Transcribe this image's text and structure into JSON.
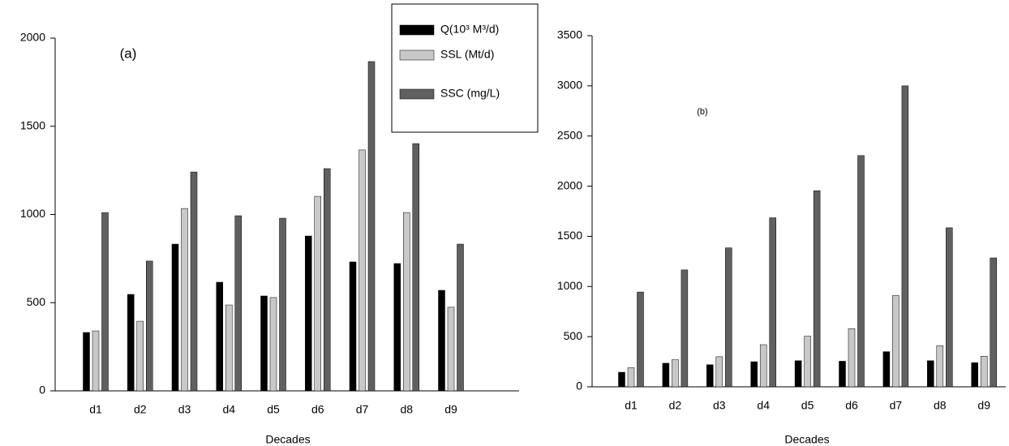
{
  "chart_data": [
    {
      "type": "bar",
      "title": "(a)",
      "x_label": "Decades",
      "categories": [
        "d1",
        "d2",
        "d3",
        "d4",
        "d5",
        "d6",
        "d7",
        "d8",
        "d9"
      ],
      "series": [
        {
          "name": "Q(10³ M³/d)",
          "color": "#000000",
          "values": [
            331,
            547,
            832,
            616,
            538,
            878,
            731,
            722,
            570
          ]
        },
        {
          "name": "SSL (Mt/d)",
          "color": "#c8c8c8",
          "values": [
            340,
            395,
            1034,
            487,
            529,
            1103,
            1366,
            1011,
            474
          ]
        },
        {
          "name": "SSC (mg/L)",
          "color": "#606060",
          "values": [
            1011,
            736,
            1241,
            993,
            979,
            1260,
            1867,
            1402,
            832
          ]
        }
      ],
      "ylim": [
        0,
        2000
      ],
      "yticks": [
        0,
        500,
        1000,
        1500,
        2000
      ],
      "legend": true
    },
    {
      "type": "bar",
      "title": "(b)",
      "x_label": "Decades",
      "categories": [
        "d1",
        "d2",
        "d3",
        "d4",
        "d5",
        "d6",
        "d7",
        "d8",
        "d9"
      ],
      "series": [
        {
          "color": "#000000",
          "values": [
            145,
            235,
            220,
            250,
            260,
            255,
            350,
            260,
            240
          ]
        },
        {
          "color": "#c8c8c8",
          "values": [
            190,
            270,
            300,
            420,
            505,
            580,
            910,
            410,
            305
          ]
        },
        {
          "color": "#606060",
          "values": [
            945,
            1165,
            1385,
            1685,
            1955,
            2305,
            3000,
            1585,
            1285
          ]
        }
      ],
      "ylim": [
        0,
        3500
      ],
      "yticks": [
        0,
        500,
        1000,
        1500,
        2000,
        2500,
        3000,
        3500
      ],
      "legend": false
    }
  ]
}
